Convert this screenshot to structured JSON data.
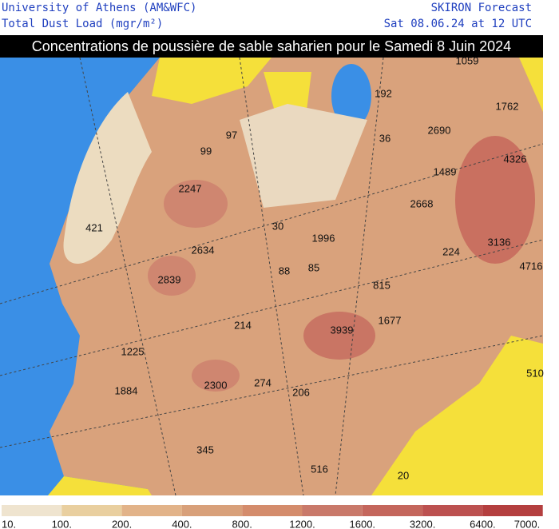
{
  "header": {
    "left": [
      "University of Athens (AM&WFC)",
      "Total Dust Load (mgr/m²)"
    ],
    "right": [
      "SKIRON Forecast",
      "Sat 08.06.24 at 12 UTC"
    ]
  },
  "title": "Concentrations de poussière de sable saharien pour le Samedi 8 Juin 2024",
  "map_labels": [
    "1059",
    "192",
    "1762",
    "2690",
    "36",
    "97",
    "99",
    "1489",
    "4326",
    "2247",
    "2668",
    "421",
    "30",
    "1996",
    "2634",
    "3136",
    "224",
    "4716",
    "88",
    "85",
    "2839",
    "815",
    "214",
    "1677",
    "3939",
    "1225",
    "510",
    "2300",
    "274",
    "1884",
    "206",
    "345",
    "516",
    "20"
  ],
  "colorbar": {
    "labels": [
      "10.",
      "100.",
      "200.",
      "400.",
      "800.",
      "1200.",
      "1600.",
      "3200.",
      "6400.",
      "7000."
    ],
    "colors": [
      "#efe4cf",
      "#e9cf9f",
      "#e2b389",
      "#d8a07a",
      "#d48c6c",
      "#c9796a",
      "#c4665c",
      "#bc5150",
      "#b43f3f"
    ]
  }
}
